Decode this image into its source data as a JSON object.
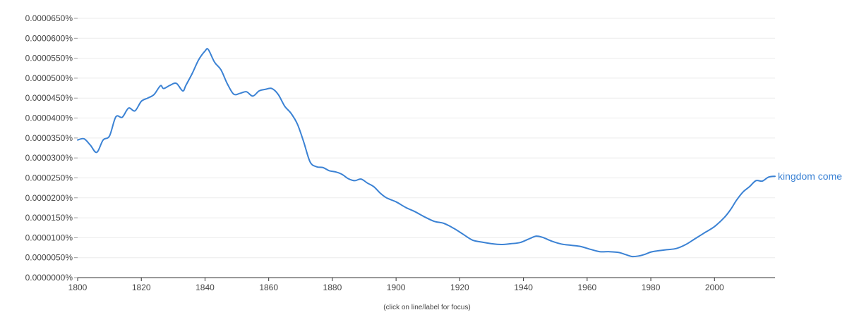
{
  "chart_data": {
    "type": "line",
    "xlim": [
      1800,
      2019
    ],
    "ylim": [
      0,
      6.5e-07
    ],
    "x_ticks": [
      1800,
      1820,
      1840,
      1860,
      1880,
      1900,
      1920,
      1940,
      1960,
      1980,
      2000
    ],
    "y_ticks": [
      0,
      5e-08,
      1e-07,
      1.5e-07,
      2e-07,
      2.5e-07,
      3e-07,
      3.5e-07,
      4e-07,
      4.5e-07,
      5e-07,
      5.5e-07,
      6e-07,
      6.5e-07
    ],
    "y_tick_labels": [
      "0.0000000%",
      "0.0000050%",
      "0.0000100%",
      "0.0000150%",
      "0.0000200%",
      "0.0000250%",
      "0.0000300%",
      "0.0000350%",
      "0.0000400%",
      "0.0000450%",
      "0.0000500%",
      "0.0000550%",
      "0.0000600%",
      "0.0000650%"
    ],
    "grid": true,
    "footnote": "(click on line/label for focus)",
    "series": [
      {
        "name": "kingdom come",
        "color": "#3b82d4",
        "x": [
          1800,
          1802,
          1804,
          1806,
          1808,
          1810,
          1812,
          1814,
          1816,
          1818,
          1820,
          1822,
          1824,
          1826,
          1827,
          1829,
          1831,
          1833,
          1834,
          1836,
          1838,
          1840,
          1841,
          1843,
          1845,
          1847,
          1849,
          1851,
          1853,
          1855,
          1857,
          1859,
          1861,
          1863,
          1865,
          1867,
          1869,
          1871,
          1873,
          1875,
          1877,
          1879,
          1881,
          1883,
          1885,
          1887,
          1889,
          1891,
          1893,
          1895,
          1897,
          1900,
          1903,
          1906,
          1909,
          1912,
          1915,
          1918,
          1921,
          1924,
          1927,
          1930,
          1933,
          1936,
          1939,
          1942,
          1944,
          1946,
          1949,
          1952,
          1955,
          1958,
          1961,
          1964,
          1967,
          1970,
          1972,
          1974,
          1976,
          1978,
          1980,
          1982,
          1985,
          1988,
          1991,
          1994,
          1997,
          2000,
          2003,
          2005,
          2007,
          2009,
          2011,
          2013,
          2015,
          2017,
          2019
        ],
        "values": [
          3.45e-07,
          3.48e-07,
          3.32e-07,
          3.14e-07,
          3.45e-07,
          3.55e-07,
          4.03e-07,
          4.02e-07,
          4.25e-07,
          4.18e-07,
          4.42e-07,
          4.5e-07,
          4.59e-07,
          4.81e-07,
          4.74e-07,
          4.82e-07,
          4.87e-07,
          4.68e-07,
          4.82e-07,
          5.12e-07,
          5.46e-07,
          5.68e-07,
          5.72e-07,
          5.4e-07,
          5.21e-07,
          4.86e-07,
          4.6e-07,
          4.62e-07,
          4.66e-07,
          4.55e-07,
          4.68e-07,
          4.72e-07,
          4.74e-07,
          4.59e-07,
          4.3e-07,
          4.12e-07,
          3.85e-07,
          3.4e-07,
          2.9e-07,
          2.78e-07,
          2.76e-07,
          2.68e-07,
          2.65e-07,
          2.59e-07,
          2.48e-07,
          2.43e-07,
          2.47e-07,
          2.37e-07,
          2.28e-07,
          2.12e-07,
          2e-07,
          1.9e-07,
          1.76e-07,
          1.65e-07,
          1.52e-07,
          1.41e-07,
          1.36e-07,
          1.24e-07,
          1.09e-07,
          9.4e-08,
          8.9e-08,
          8.5e-08,
          8.3e-08,
          8.5e-08,
          8.8e-08,
          9.8e-08,
          1.04e-07,
          1.01e-07,
          9.1e-08,
          8.4e-08,
          8.1e-08,
          7.8e-08,
          7.1e-08,
          6.5e-08,
          6.5e-08,
          6.3e-08,
          5.8e-08,
          5.3e-08,
          5.4e-08,
          5.8e-08,
          6.4e-08,
          6.7e-08,
          7e-08,
          7.3e-08,
          8.3e-08,
          9.8e-08,
          1.13e-07,
          1.28e-07,
          1.5e-07,
          1.7e-07,
          1.95e-07,
          2.15e-07,
          2.28e-07,
          2.43e-07,
          2.42e-07,
          2.52e-07,
          2.54e-07
        ]
      }
    ]
  }
}
